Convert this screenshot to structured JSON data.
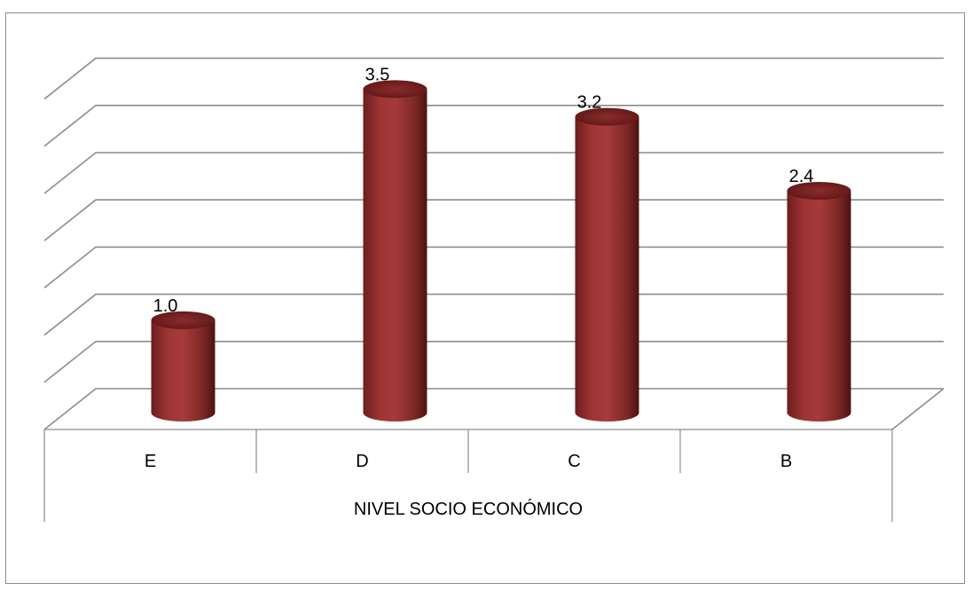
{
  "chart_data": {
    "type": "bar",
    "style": "3d-cylinder",
    "categories": [
      "E",
      "D",
      "C",
      "B"
    ],
    "values": [
      1.0,
      3.5,
      3.2,
      2.4
    ],
    "value_labels": [
      "1.0",
      "3.5",
      "3.2",
      "2.4"
    ],
    "xlabel": "NIVEL SOCIO ECONÓMICO",
    "ylim": [
      0,
      3.6
    ],
    "gridlines": 7,
    "grid": true,
    "legend": "none",
    "colors": {
      "bar": "#9e3434",
      "bar_dark": "#5e1616",
      "bar_top": "#7a2424",
      "grid": "#8c8c8c"
    }
  }
}
